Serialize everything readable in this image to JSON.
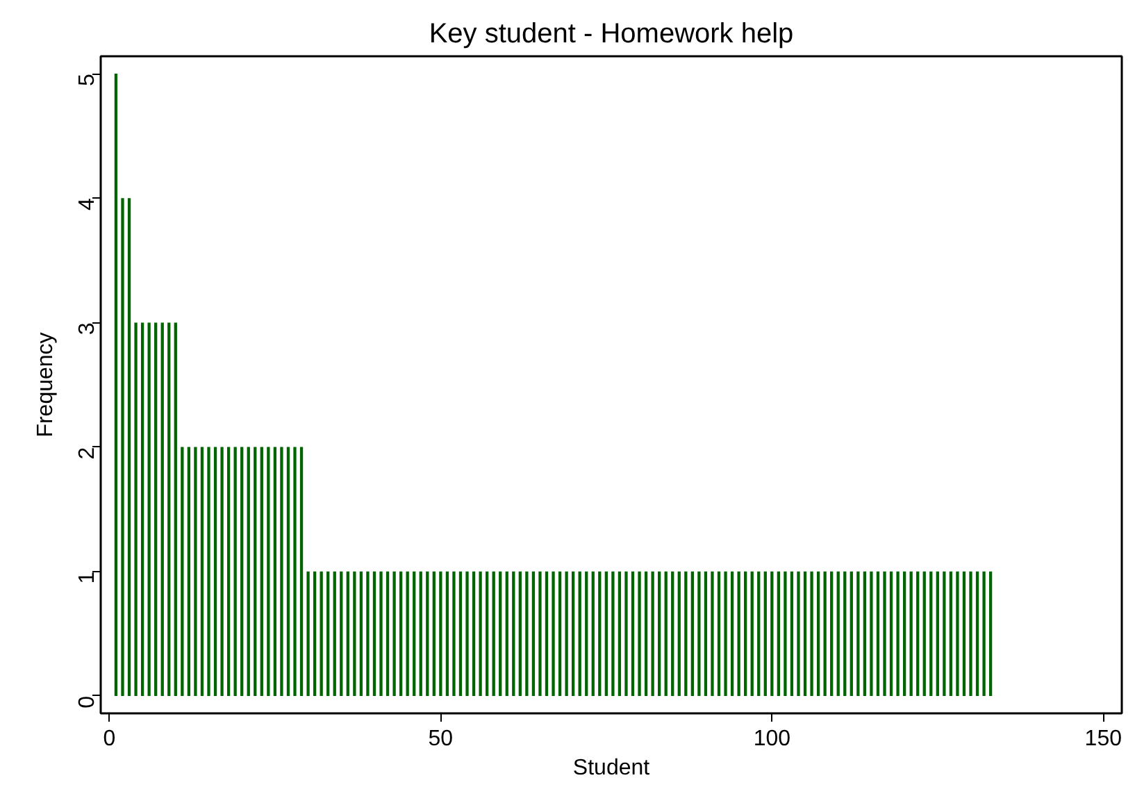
{
  "chart_data": {
    "type": "bar",
    "title": "Key student - Homework help",
    "xlabel": "Student",
    "ylabel": "Frequency",
    "x": [
      1,
      2,
      3,
      4,
      5,
      6,
      7,
      8,
      9,
      10,
      11,
      12,
      13,
      14,
      15,
      16,
      17,
      18,
      19,
      20,
      21,
      22,
      23,
      24,
      25,
      26,
      27,
      28,
      29,
      30,
      31,
      32,
      33,
      34,
      35,
      36,
      37,
      38,
      39,
      40,
      41,
      42,
      43,
      44,
      45,
      46,
      47,
      48,
      49,
      50,
      51,
      52,
      53,
      54,
      55,
      56,
      57,
      58,
      59,
      60,
      61,
      62,
      63,
      64,
      65,
      66,
      67,
      68,
      69,
      70,
      71,
      72,
      73,
      74,
      75,
      76,
      77,
      78,
      79,
      80,
      81,
      82,
      83,
      84,
      85,
      86,
      87,
      88,
      89,
      90,
      91,
      92,
      93,
      94,
      95,
      96,
      97,
      98,
      99,
      100,
      101,
      102,
      103,
      104,
      105,
      106,
      107,
      108,
      109,
      110,
      111,
      112,
      113,
      114,
      115,
      116,
      117,
      118,
      119,
      120,
      121,
      122,
      123,
      124,
      125,
      126,
      127,
      128,
      129,
      130,
      131,
      132,
      133
    ],
    "values": [
      5,
      4,
      4,
      3,
      3,
      3,
      3,
      3,
      3,
      3,
      2,
      2,
      2,
      2,
      2,
      2,
      2,
      2,
      2,
      2,
      2,
      2,
      2,
      2,
      2,
      2,
      2,
      2,
      2,
      1,
      1,
      1,
      1,
      1,
      1,
      1,
      1,
      1,
      1,
      1,
      1,
      1,
      1,
      1,
      1,
      1,
      1,
      1,
      1,
      1,
      1,
      1,
      1,
      1,
      1,
      1,
      1,
      1,
      1,
      1,
      1,
      1,
      1,
      1,
      1,
      1,
      1,
      1,
      1,
      1,
      1,
      1,
      1,
      1,
      1,
      1,
      1,
      1,
      1,
      1,
      1,
      1,
      1,
      1,
      1,
      1,
      1,
      1,
      1,
      1,
      1,
      1,
      1,
      1,
      1,
      1,
      1,
      1,
      1,
      1,
      1,
      1,
      1,
      1,
      1,
      1,
      1,
      1,
      1,
      1,
      1,
      1,
      1,
      1,
      1,
      1,
      1,
      1,
      1,
      1,
      1,
      1,
      1,
      1,
      1,
      1,
      1,
      1,
      1,
      1,
      1,
      1,
      1
    ],
    "color": "#006400",
    "xlim": [
      -1.3,
      152.8
    ],
    "ylim": [
      -0.14,
      5.14
    ],
    "xticks": [
      0,
      50,
      100,
      150
    ],
    "yticks": [
      0,
      1,
      2,
      3,
      4,
      5
    ],
    "grid": false
  }
}
